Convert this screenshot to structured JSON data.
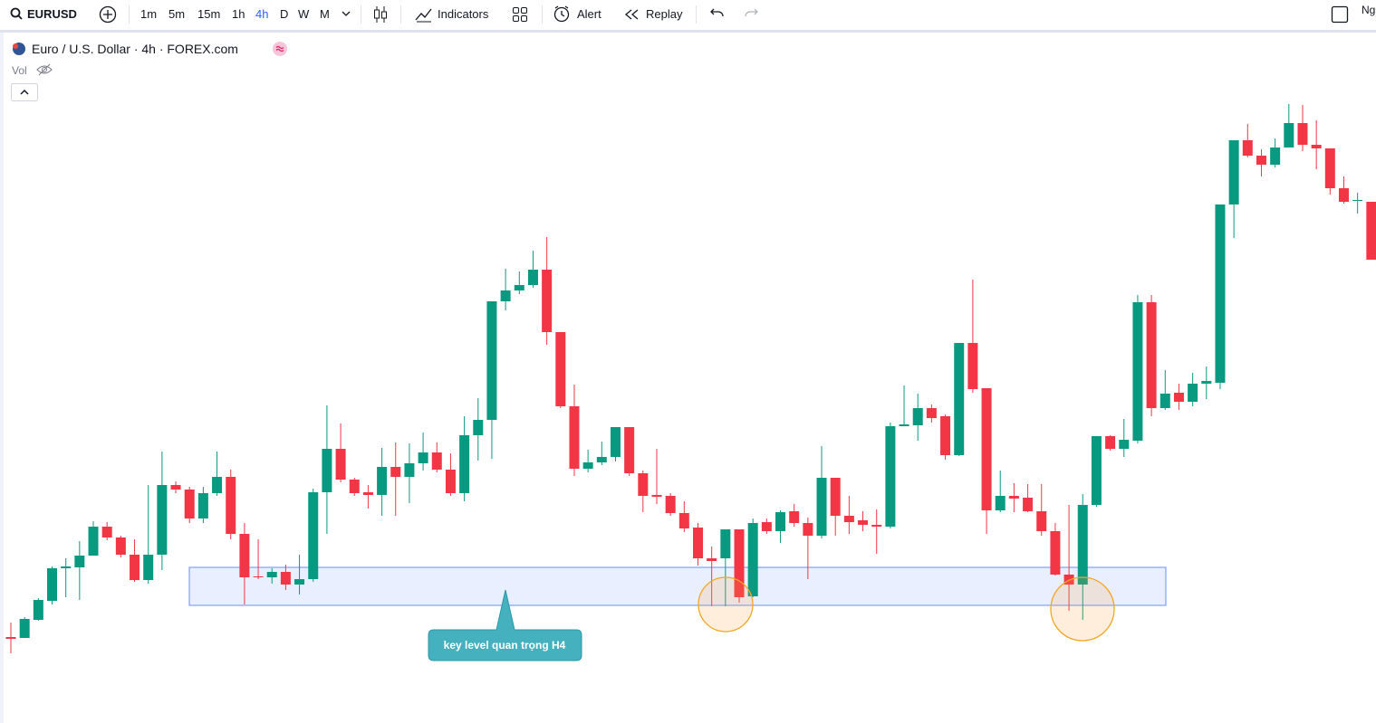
{
  "toolbar": {
    "symbol": "EURUSD",
    "intervals": [
      "1m",
      "5m",
      "15m",
      "1h",
      "4h",
      "D",
      "W",
      "M"
    ],
    "indicators": "Indicators",
    "alert": "Alert",
    "replay": "Replay",
    "right_text": "Ng"
  },
  "legend": {
    "title": "Euro / U.S. Dollar · 4h · FOREX.com",
    "volume": "Vol"
  },
  "annotation": {
    "text": "key level quan trọng H4"
  },
  "chart_data": {
    "type": "candlestick",
    "up_color": "#089981",
    "down_color": "#f23645",
    "ylim": [
      1,
      764
    ],
    "zone": {
      "low": 131,
      "high": 173,
      "color": "#2962ff"
    },
    "open": [
      96,
      95,
      115,
      136,
      172,
      173,
      186,
      218,
      206,
      187,
      159,
      187,
      264,
      259,
      227,
      255,
      273,
      210,
      163,
      162,
      168,
      154,
      160,
      256,
      304,
      270,
      256,
      253,
      284,
      273,
      288,
      300,
      281,
      255,
      319,
      336,
      467,
      479,
      485,
      502,
      433,
      351,
      282,
      289,
      295,
      328,
      277,
      253,
      252,
      233,
      217,
      183,
      183,
      215,
      141,
      223,
      213,
      235,
      222,
      208,
      272,
      230,
      225,
      220,
      218,
      329,
      330,
      349,
      340,
      297,
      421,
      371,
      236,
      252,
      250,
      235,
      213,
      165,
      154,
      242,
      318,
      304,
      313,
      466,
      349,
      366,
      356,
      376,
      377,
      574,
      645,
      628,
      618,
      637,
      664,
      640,
      636,
      592,
      578,
      577
    ],
    "high": [
      112,
      118,
      139,
      174,
      183,
      202,
      224,
      223,
      208,
      204,
      264,
      301,
      268,
      262,
      262,
      301,
      281,
      222,
      204,
      172,
      176,
      187,
      260,
      352,
      332,
      272,
      264,
      305,
      311,
      310,
      322,
      311,
      299,
      340,
      360,
      467,
      503,
      500,
      523,
      538,
      433,
      375,
      303,
      312,
      328,
      328,
      280,
      304,
      255,
      246,
      222,
      196,
      215,
      215,
      227,
      227,
      236,
      243,
      228,
      307,
      272,
      252,
      235,
      237,
      333,
      374,
      365,
      353,
      342,
      421,
      491,
      371,
      280,
      266,
      265,
      265,
      222,
      242,
      254,
      318,
      319,
      337,
      474,
      474,
      391,
      376,
      388,
      395,
      574,
      645,
      663,
      635,
      647,
      685,
      684,
      667,
      636,
      605,
      587,
      577
    ],
    "low": [
      78,
      95,
      114,
      132,
      140,
      137,
      186,
      203,
      184,
      157,
      155,
      170,
      255,
      222,
      222,
      252,
      204,
      132,
      160,
      155,
      148,
      143,
      157,
      210,
      267,
      252,
      238,
      230,
      230,
      244,
      280,
      278,
      252,
      246,
      291,
      293,
      457,
      475,
      482,
      419,
      349,
      274,
      278,
      286,
      290,
      274,
      234,
      243,
      230,
      212,
      175,
      130,
      130,
      134,
      140,
      210,
      200,
      218,
      160,
      205,
      208,
      210,
      213,
      188,
      216,
      329,
      313,
      333,
      292,
      296,
      366,
      210,
      234,
      234,
      234,
      208,
      164,
      125,
      115,
      240,
      302,
      295,
      310,
      340,
      347,
      347,
      351,
      359,
      370,
      537,
      626,
      605,
      615,
      637,
      633,
      613,
      585,
      575,
      564,
      513
    ],
    "close": [
      94,
      116,
      137,
      172,
      174,
      186,
      218,
      206,
      187,
      159,
      187,
      264,
      259,
      227,
      255,
      273,
      210,
      162,
      162,
      168,
      154,
      160,
      256,
      304,
      270,
      255,
      253,
      284,
      273,
      288,
      300,
      281,
      255,
      319,
      336,
      467,
      479,
      485,
      502,
      433,
      351,
      282,
      289,
      295,
      328,
      277,
      252,
      251,
      233,
      216,
      183,
      180,
      215,
      140,
      222,
      213,
      234,
      222,
      208,
      272,
      230,
      223,
      220,
      218,
      329,
      331,
      349,
      338,
      297,
      421,
      370,
      236,
      252,
      249,
      235,
      213,
      165,
      154,
      242,
      318,
      304,
      314,
      466,
      349,
      365,
      356,
      376,
      379,
      574,
      645,
      628,
      618,
      637,
      664,
      640,
      636,
      592,
      577,
      579,
      513
    ]
  }
}
